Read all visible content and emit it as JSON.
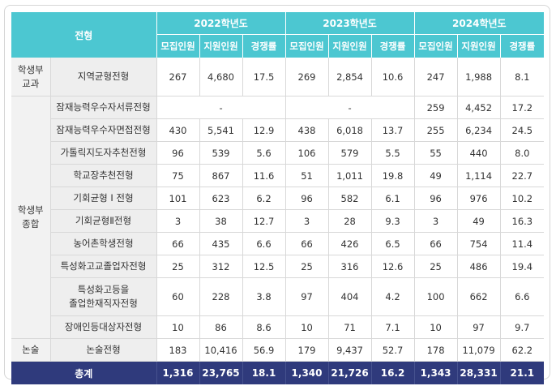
{
  "header": {
    "type": "전형",
    "years": [
      "2022학년도",
      "2023학년도",
      "2024학년도"
    ],
    "sub": [
      "모집인원",
      "지원인원",
      "경쟁률"
    ]
  },
  "categories": [
    {
      "line1": "학생부",
      "line2": "교과"
    },
    {
      "line1": "학생부",
      "line2": "종합"
    },
    {
      "line1": "논술"
    }
  ],
  "rows": [
    {
      "name": "지역균형전형",
      "v": [
        "267",
        "4,680",
        "17.5",
        "269",
        "2,854",
        "10.6",
        "247",
        "1,988",
        "8.1"
      ]
    },
    {
      "name": "잠재능력우수자서류전형",
      "dash2022": "-",
      "dash2023": "-",
      "v": [
        "259",
        "4,452",
        "17.2"
      ]
    },
    {
      "name": "잠재능력우수자면접전형",
      "v": [
        "430",
        "5,541",
        "12.9",
        "438",
        "6,018",
        "13.7",
        "255",
        "6,234",
        "24.5"
      ]
    },
    {
      "name": "가톨릭지도자추천전형",
      "v": [
        "96",
        "539",
        "5.6",
        "106",
        "579",
        "5.5",
        "55",
        "440",
        "8.0"
      ]
    },
    {
      "name": "학교장추천전형",
      "v": [
        "75",
        "867",
        "11.6",
        "51",
        "1,011",
        "19.8",
        "49",
        "1,114",
        "22.7"
      ]
    },
    {
      "name": "기회균형 I 전형",
      "v": [
        "101",
        "623",
        "6.2",
        "96",
        "582",
        "6.1",
        "96",
        "976",
        "10.2"
      ]
    },
    {
      "name": "기회균형Ⅱ전형",
      "v": [
        "3",
        "38",
        "12.7",
        "3",
        "28",
        "9.3",
        "3",
        "49",
        "16.3"
      ]
    },
    {
      "name": "농어촌학생전형",
      "v": [
        "66",
        "435",
        "6.6",
        "66",
        "426",
        "6.5",
        "66",
        "754",
        "11.4"
      ]
    },
    {
      "name": "특성화고교졸업자전형",
      "v": [
        "25",
        "312",
        "12.5",
        "25",
        "316",
        "12.6",
        "25",
        "486",
        "19.4"
      ]
    },
    {
      "line1": "특성화고등을",
      "line2": "졸업한재직자전형",
      "v": [
        "60",
        "228",
        "3.8",
        "97",
        "404",
        "4.2",
        "100",
        "662",
        "6.6"
      ]
    },
    {
      "name": "장애인등대상자전형",
      "v": [
        "10",
        "86",
        "8.6",
        "10",
        "71",
        "7.1",
        "10",
        "97",
        "9.7"
      ]
    },
    {
      "name": "논술전형",
      "v": [
        "183",
        "10,416",
        "56.9",
        "179",
        "9,437",
        "52.7",
        "178",
        "11,079",
        "62.2"
      ]
    }
  ],
  "total": {
    "label": "총계",
    "v": [
      "1,316",
      "23,765",
      "18.1",
      "1,340",
      "21,726",
      "16.2",
      "1,343",
      "28,331",
      "21.1"
    ]
  },
  "colors": {
    "header_bg": "#4cc7d1",
    "category_bg": "#f2f2f2",
    "total_bg": "#2f3a7c"
  }
}
